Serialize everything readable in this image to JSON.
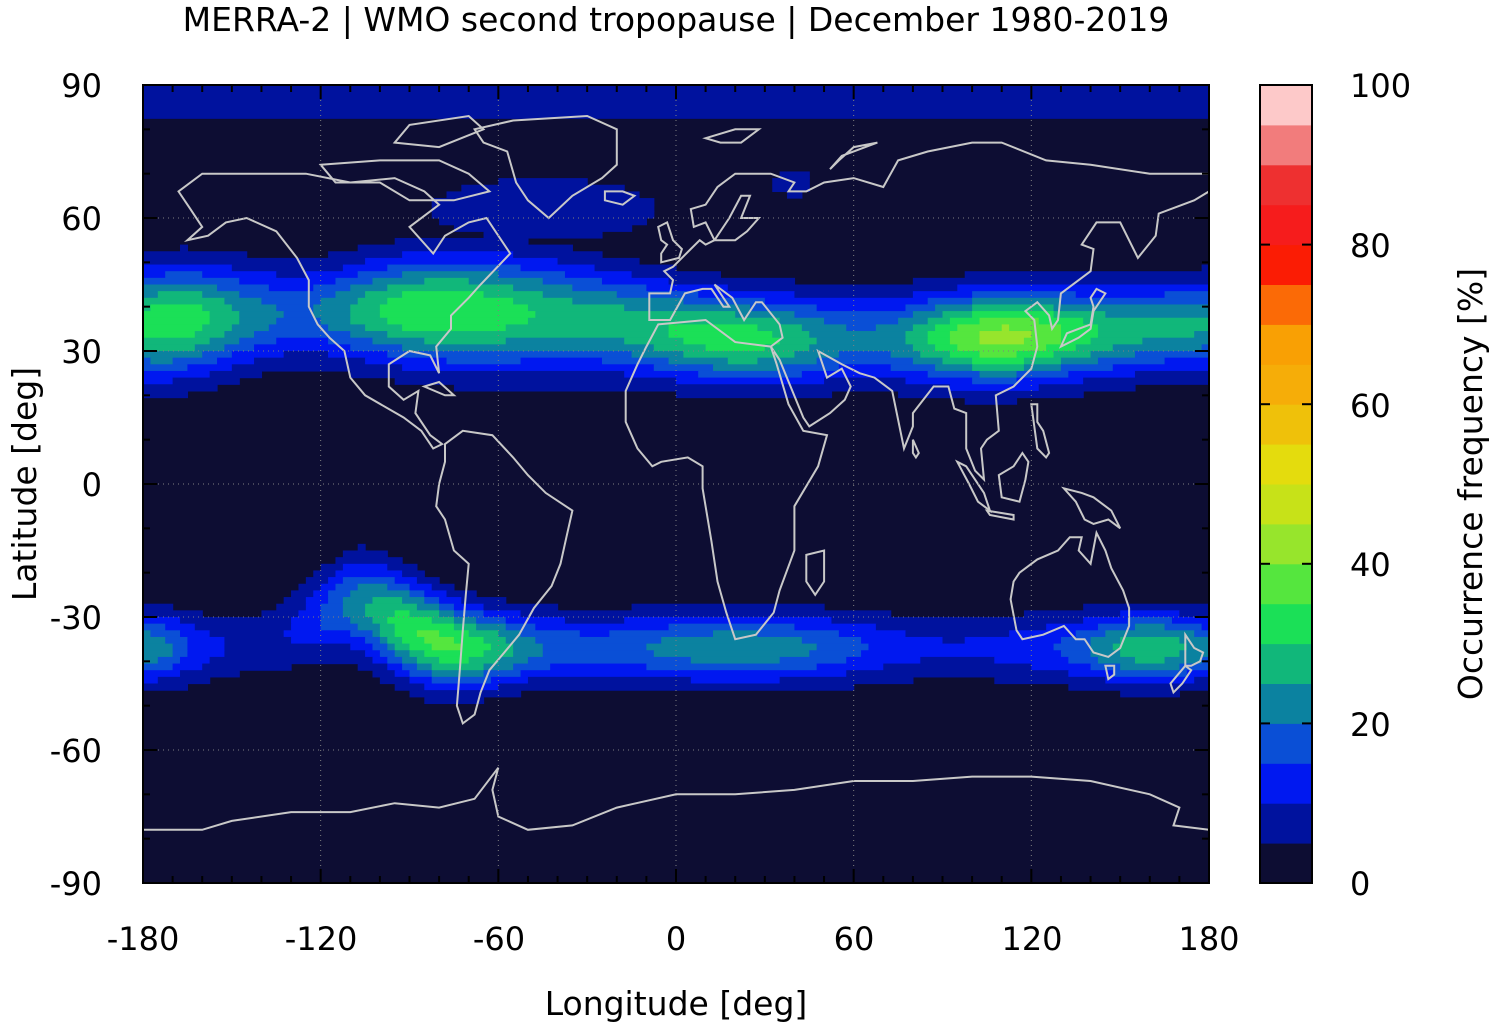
{
  "chart_data": {
    "type": "heatmap",
    "title": "MERRA-2 | WMO second tropopause | December 1980-2019",
    "xlabel": "Longitude [deg]",
    "ylabel": "Latitude [deg]",
    "xlim": [
      -180,
      180
    ],
    "ylim": [
      -90,
      90
    ],
    "x_ticks": [
      "-180",
      "-120",
      "-60",
      "0",
      "60",
      "120",
      "180"
    ],
    "y_ticks": [
      "90",
      "60",
      "30",
      "0",
      "-30",
      "-60",
      "-90"
    ],
    "grid": true,
    "colorbar": {
      "label": "Occurrence frequency [%]",
      "range": [
        0,
        100
      ],
      "ticks": [
        "0",
        "20",
        "40",
        "60",
        "80",
        "100"
      ],
      "levels": [
        {
          "min": 0,
          "max": 5,
          "color": "#0d0d33"
        },
        {
          "min": 5,
          "max": 10,
          "color": "#00129e"
        },
        {
          "min": 10,
          "max": 15,
          "color": "#0018f0"
        },
        {
          "min": 15,
          "max": 20,
          "color": "#0a4fd6"
        },
        {
          "min": 20,
          "max": 25,
          "color": "#0b82a0"
        },
        {
          "min": 25,
          "max": 30,
          "color": "#11b77a"
        },
        {
          "min": 30,
          "max": 35,
          "color": "#1be057"
        },
        {
          "min": 35,
          "max": 40,
          "color": "#55e63e"
        },
        {
          "min": 40,
          "max": 45,
          "color": "#97e52c"
        },
        {
          "min": 45,
          "max": 50,
          "color": "#c7e218"
        },
        {
          "min": 50,
          "max": 55,
          "color": "#e4dc0d"
        },
        {
          "min": 55,
          "max": 60,
          "color": "#efc10a"
        },
        {
          "min": 60,
          "max": 65,
          "color": "#f6ad08"
        },
        {
          "min": 65,
          "max": 70,
          "color": "#f9a004"
        },
        {
          "min": 70,
          "max": 75,
          "color": "#fb6a06"
        },
        {
          "min": 75,
          "max": 80,
          "color": "#fb1c04"
        },
        {
          "min": 80,
          "max": 85,
          "color": "#f61c1c"
        },
        {
          "min": 85,
          "max": 90,
          "color": "#ee3030"
        },
        {
          "min": 90,
          "max": 95,
          "color": "#f27c7c"
        },
        {
          "min": 95,
          "max": 100,
          "color": "#fdc9c9"
        }
      ]
    },
    "features": {
      "nh_jet_band": {
        "lat_center": 36,
        "lat_halfwidth": 10,
        "peak_percent": 42,
        "peak_lon": 110
      },
      "sh_jet_band": {
        "lat_center": -37,
        "lat_halfwidth": 8,
        "peak_percent": 36,
        "peak_lon": -80
      },
      "arctic_cap": {
        "lat_min": 84,
        "percent": 8
      }
    },
    "coastline_color": "#c8c8c8"
  }
}
